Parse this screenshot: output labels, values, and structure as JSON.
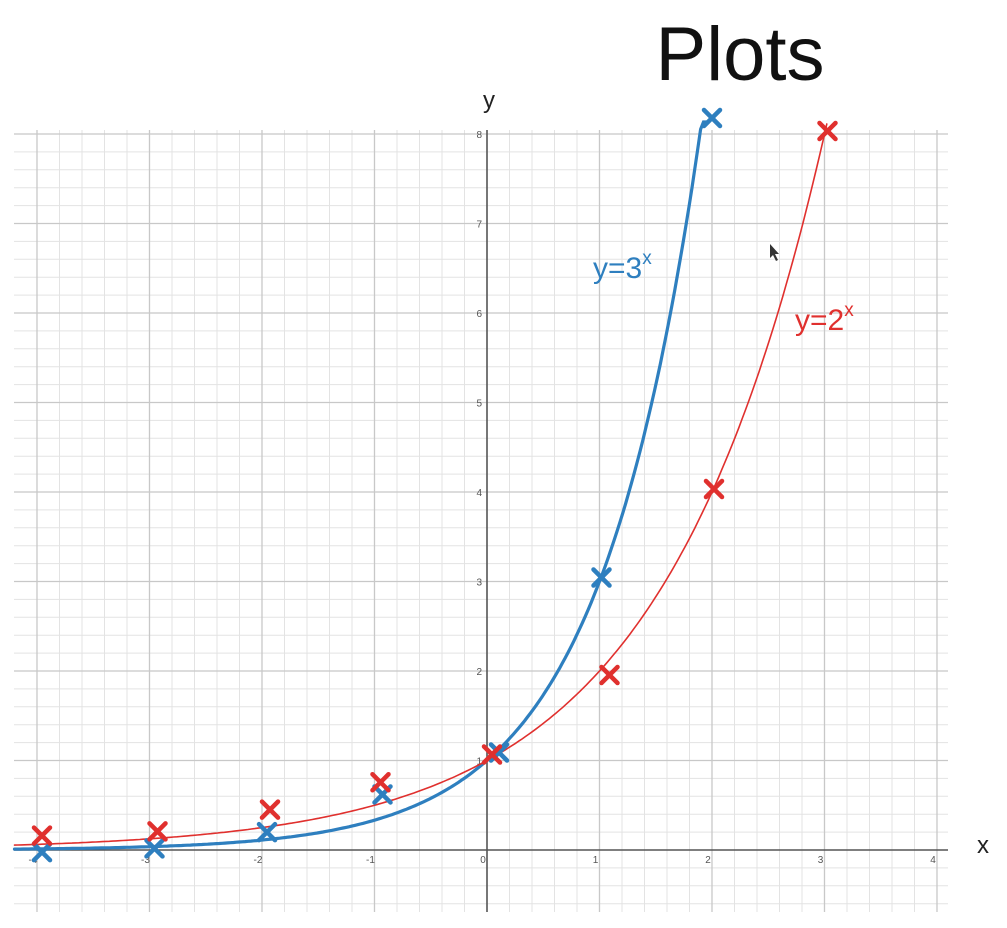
{
  "chart_data": {
    "type": "line",
    "title": "Plots",
    "xlabel": "x",
    "ylabel": "y",
    "xlim": [
      -4,
      4
    ],
    "ylim": [
      0,
      8
    ],
    "grid": true,
    "x_ticks": [
      "-4",
      "-3",
      "-2",
      "-1",
      "0",
      "1",
      "2",
      "3",
      "4"
    ],
    "y_ticks": [
      "1",
      "2",
      "3",
      "4",
      "5",
      "6",
      "7",
      "8"
    ],
    "series": [
      {
        "name": "y=3ˣ",
        "label_base": "y=3",
        "label_exp": "x",
        "color": "#2e7fbf",
        "function": "3^x",
        "points": [
          {
            "x": -4,
            "y": 0.01
          },
          {
            "x": -3,
            "y": 0.04
          },
          {
            "x": -2,
            "y": 0.11
          },
          {
            "x": -1,
            "y": 0.33
          },
          {
            "x": 0,
            "y": 1
          },
          {
            "x": 1,
            "y": 3
          },
          {
            "x": 2,
            "y": 9
          }
        ]
      },
      {
        "name": "y=2ˣ",
        "label_base": "y=2",
        "label_exp": "x",
        "color": "#e0302e",
        "function": "2^x",
        "points": [
          {
            "x": -4,
            "y": 0.06
          },
          {
            "x": -3,
            "y": 0.13
          },
          {
            "x": -2,
            "y": 0.25
          },
          {
            "x": -1,
            "y": 0.5
          },
          {
            "x": 0,
            "y": 1
          },
          {
            "x": 1,
            "y": 2
          },
          {
            "x": 2,
            "y": 4
          },
          {
            "x": 3,
            "y": 8
          }
        ]
      }
    ]
  }
}
